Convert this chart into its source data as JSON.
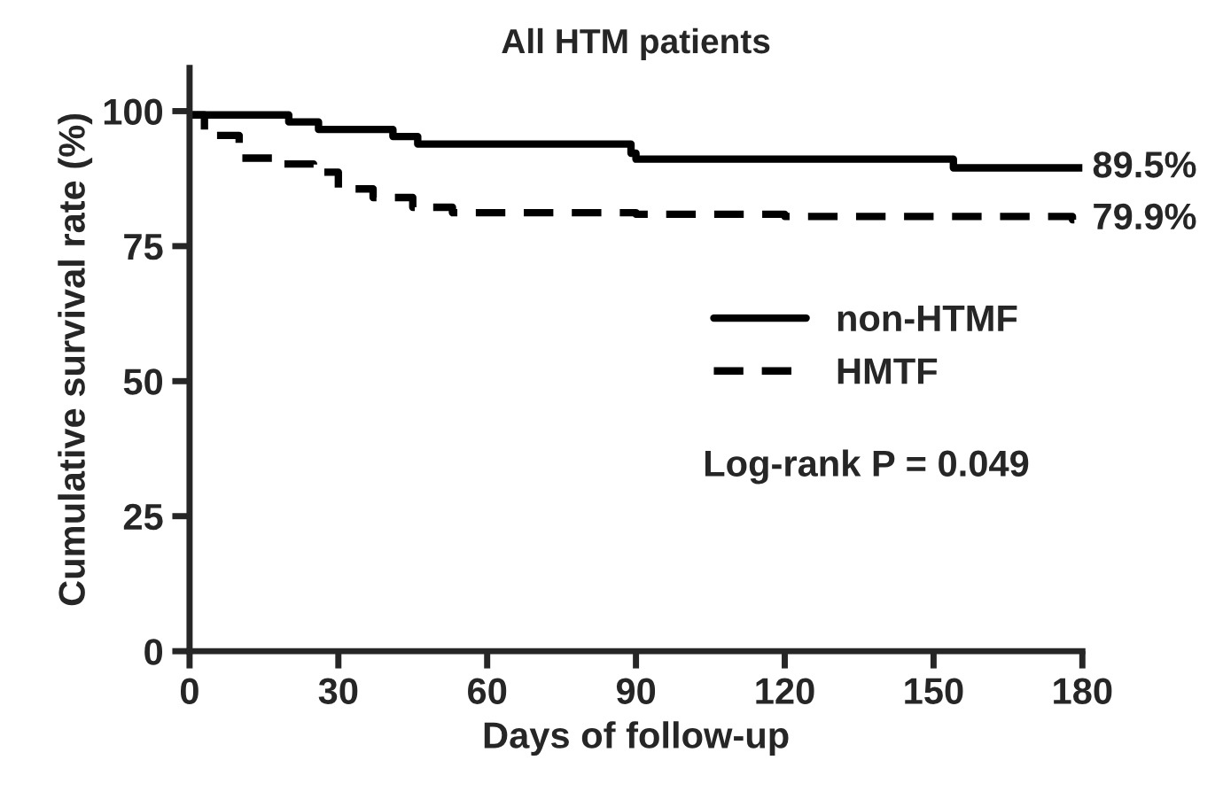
{
  "chart_data": {
    "type": "step",
    "title": "All HTM patients",
    "xlabel": "Days of follow-up",
    "ylabel": "Cumulative survival rate (%)",
    "xlim": [
      0,
      180
    ],
    "xticks": [
      0,
      30,
      60,
      90,
      120,
      150,
      180
    ],
    "ylim": [
      0,
      108
    ],
    "yticks": [
      0,
      25,
      50,
      75,
      100
    ],
    "grid": false,
    "legend": "right",
    "marker": "none",
    "series": [
      {
        "name": "non-HTMF",
        "color": "#000000",
        "line_style": "solid",
        "x": [
          0,
          20,
          26,
          41,
          46,
          89,
          90,
          154,
          180
        ],
        "values": [
          99.3,
          98.0,
          96.6,
          95.3,
          93.9,
          92.2,
          91.1,
          89.5,
          89.5
        ]
      },
      {
        "name": "HMTF",
        "color": "#000000",
        "line_style": "dashed",
        "x": [
          0,
          3,
          10,
          17,
          25,
          30,
          37,
          45,
          53,
          90,
          120,
          178,
          180
        ],
        "values": [
          99.3,
          95.5,
          91.3,
          90.2,
          88.7,
          85.6,
          84.0,
          82.2,
          81.2,
          80.9,
          80.5,
          79.9,
          79.9
        ]
      }
    ],
    "annotations": [
      {
        "text": "89.5%",
        "x": 180,
        "y": 89.5
      },
      {
        "text": "79.9%",
        "x": 180,
        "y": 79.9
      },
      "Log-rank P = 0.049"
    ]
  }
}
